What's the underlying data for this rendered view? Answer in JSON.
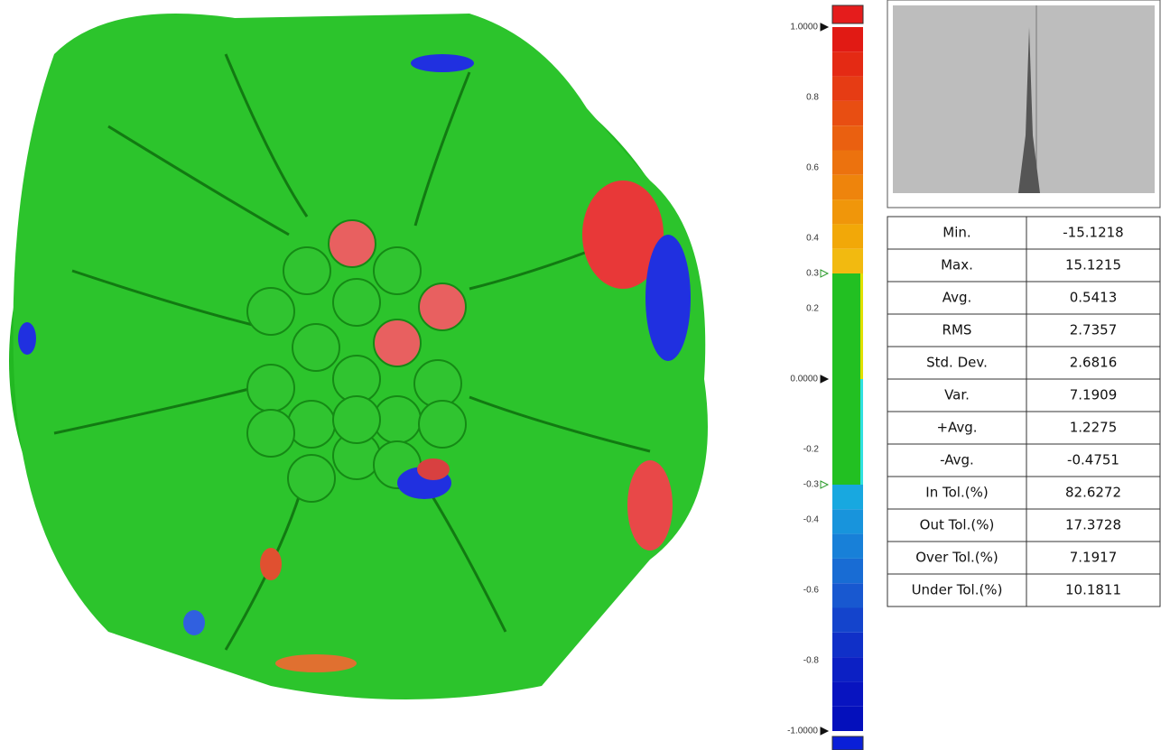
{
  "color_scale": {
    "lim": [
      -1,
      1
    ],
    "ticks": [
      {
        "value": 1,
        "label": "1.0000"
      },
      0.8,
      0.6,
      0.4,
      0.3,
      0.2,
      {
        "value": 0,
        "label": "0.0000"
      },
      -0.2,
      -0.3,
      -0.4,
      -0.6,
      -0.8,
      {
        "value": -1,
        "label": "-1.0000"
      }
    ],
    "tolerance": [
      -0.3,
      0.3
    ]
  },
  "table": {
    "rows": [
      [
        "Min.",
        "-15.1218"
      ],
      [
        "Max.",
        "15.1215"
      ],
      [
        "Avg.",
        "0.5413"
      ],
      [
        "RMS",
        "2.7357"
      ],
      [
        "Std. Dev.",
        "2.6816"
      ],
      [
        "Var.",
        "7.1909"
      ],
      [
        "+Avg.",
        "1.2275"
      ],
      [
        "-Avg.",
        "-0.4751"
      ],
      [
        "In Tol.(%)",
        "82.6272"
      ],
      [
        "Out Tol.(%)",
        "17.3728"
      ],
      [
        "Over Tol.(%)",
        "7.1917"
      ],
      [
        "Under Tol.(%)",
        "10.1811"
      ]
    ]
  }
}
